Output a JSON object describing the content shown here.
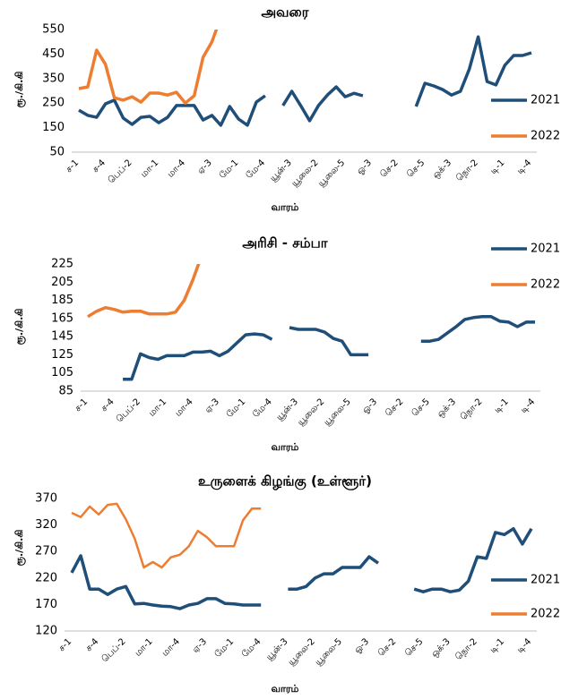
{
  "chart_data": [
    {
      "type": "line",
      "title": "அவரை",
      "y_label": "ரூ./கி.கி",
      "x_label": "வாரம்",
      "categories": [
        "ச-1",
        null,
        null,
        "ச-4",
        null,
        null,
        "பெப்-2",
        null,
        null,
        "மா-1",
        null,
        null,
        "மா-4",
        null,
        null,
        "ஏ-3",
        null,
        null,
        "மே-1",
        null,
        null,
        "மே-4",
        null,
        null,
        "யூன்-3",
        null,
        null,
        "யூலை-2",
        null,
        null,
        "யூலை-5",
        null,
        null,
        "ஓ-3",
        null,
        null,
        "செ-2",
        null,
        null,
        "செ-5",
        null,
        null,
        "ஒக்-3",
        null,
        null,
        "நொ-2",
        null,
        null,
        "டி-1",
        null,
        null,
        "டி-4"
      ],
      "series": [
        {
          "name": "2021",
          "color": "#1f4e79",
          "values": [
            221,
            200,
            192,
            247,
            262,
            189,
            163,
            192,
            196,
            170,
            192,
            240,
            240,
            240,
            181,
            200,
            160,
            236,
            185,
            160,
            254,
            280,
            null,
            240,
            298,
            240,
            178,
            240,
            283,
            316,
            276,
            290,
            280,
            null,
            null,
            null,
            null,
            null,
            236,
            331,
            320,
            305,
            283,
            298,
            389,
            520,
            338,
            324,
            404,
            444,
            444,
            455
          ]
        },
        {
          "name": "2022",
          "color": "#ed7d31",
          "values": [
            309,
            316,
            466,
            408,
            272,
            262,
            276,
            254,
            291,
            291,
            283,
            294,
            250,
            280,
            437,
            500,
            600,
            null,
            null,
            null,
            null,
            null,
            null,
            null,
            null,
            null,
            null,
            null,
            null,
            null,
            null,
            null,
            null,
            null,
            null,
            null,
            null,
            null,
            null,
            null,
            null,
            null,
            null,
            null,
            null,
            null,
            null,
            null,
            null,
            null,
            null,
            null
          ]
        }
      ],
      "ylim": [
        50,
        550
      ],
      "yticks": [
        50,
        150,
        250,
        350,
        450,
        550
      ]
    },
    {
      "type": "line",
      "title": "அரிசி - சம்பா",
      "y_label": "ரூ./கி.கி",
      "x_label": "வாரம்",
      "categories": [
        "ச-1",
        null,
        null,
        "ச-4",
        null,
        null,
        "பெப்-2",
        null,
        null,
        "மா-1",
        null,
        null,
        "மா-4",
        null,
        null,
        "ஏ-3",
        null,
        null,
        "மே-1",
        null,
        null,
        "மே-4",
        null,
        null,
        "யூன்-3",
        null,
        null,
        "யூலை-2",
        null,
        null,
        "யூலை-5",
        null,
        null,
        "ஓ-3",
        null,
        null,
        "செ-2",
        null,
        null,
        "செ-5",
        null,
        null,
        "ஒக்-3",
        null,
        null,
        "நொ-2",
        null,
        null,
        "டி-1",
        null,
        null,
        "டி-4"
      ],
      "series": [
        {
          "name": "2021",
          "color": "#1f4e79",
          "values": [
            null,
            null,
            null,
            null,
            98,
            98,
            126,
            122,
            120,
            124,
            124,
            124,
            128,
            128,
            129,
            124,
            129,
            138,
            147,
            148,
            147,
            142,
            null,
            155,
            153,
            153,
            153,
            150,
            143,
            140,
            125,
            125,
            125,
            null,
            null,
            null,
            null,
            null,
            140,
            140,
            142,
            149,
            156,
            164,
            166,
            167,
            167,
            162,
            161,
            156,
            161,
            161
          ]
        },
        {
          "name": "2022",
          "color": "#ed7d31",
          "values": [
            167,
            173,
            177,
            175,
            172,
            173,
            173,
            170,
            170,
            170,
            172,
            185,
            208,
            235,
            null,
            null,
            null,
            null,
            null,
            null,
            null,
            null,
            null,
            null,
            null,
            null,
            null,
            null,
            null,
            null,
            null,
            null,
            null,
            null,
            null,
            null,
            null,
            null,
            null,
            null,
            null,
            null,
            null,
            null,
            null,
            null,
            null,
            null,
            null,
            null,
            null,
            null
          ]
        }
      ],
      "ylim": [
        85,
        225
      ],
      "yticks": [
        85,
        105,
        125,
        145,
        165,
        185,
        205,
        225
      ]
    },
    {
      "type": "line",
      "title": "உருளைக் கிழங்கு (உள்ளூர்)",
      "y_label": "ரூ./கி.கி",
      "x_label": "வாரம்",
      "categories": [
        "ச-1",
        null,
        null,
        "ச-4",
        null,
        null,
        "பெப்-2",
        null,
        null,
        "மா-1",
        null,
        null,
        "மா-4",
        null,
        null,
        "ஏ-3",
        null,
        null,
        "மே-1",
        null,
        null,
        "மே-4",
        null,
        null,
        "யூன்-3",
        null,
        null,
        "யூலை-2",
        null,
        null,
        "யூலை-5",
        null,
        null,
        "ஓ-3",
        null,
        null,
        "செ-2",
        null,
        null,
        "செ-5",
        null,
        null,
        "ஒக்-3",
        null,
        null,
        "நொ-2",
        null,
        null,
        "டி-1",
        null,
        null,
        "டி-4"
      ],
      "series": [
        {
          "name": "2021",
          "color": "#1f4e79",
          "values": [
            230,
            262,
            199,
            199,
            189,
            199,
            204,
            171,
            172,
            169,
            167,
            166,
            162,
            169,
            172,
            181,
            181,
            172,
            171,
            169,
            169,
            169,
            null,
            null,
            199,
            199,
            204,
            220,
            228,
            228,
            240,
            240,
            240,
            260,
            248,
            null,
            null,
            null,
            199,
            194,
            199,
            199,
            194,
            197,
            214,
            260,
            257,
            306,
            302,
            313,
            284,
            313
          ]
        },
        {
          "name": "2022",
          "color": "#ed7d31",
          "values": [
            343,
            335,
            355,
            340,
            358,
            360,
            331,
            294,
            240,
            250,
            240,
            259,
            264,
            280,
            309,
            297,
            280,
            280,
            280,
            329,
            351,
            351,
            null,
            null,
            null,
            null,
            null,
            null,
            null,
            null,
            null,
            null,
            null,
            null,
            null,
            null,
            null,
            null,
            null,
            null,
            null,
            null,
            null,
            null,
            null,
            null,
            null,
            null,
            null,
            null,
            null,
            null
          ]
        }
      ],
      "ylim": [
        120,
        370
      ],
      "yticks": [
        120,
        170,
        220,
        270,
        320,
        370
      ]
    }
  ]
}
